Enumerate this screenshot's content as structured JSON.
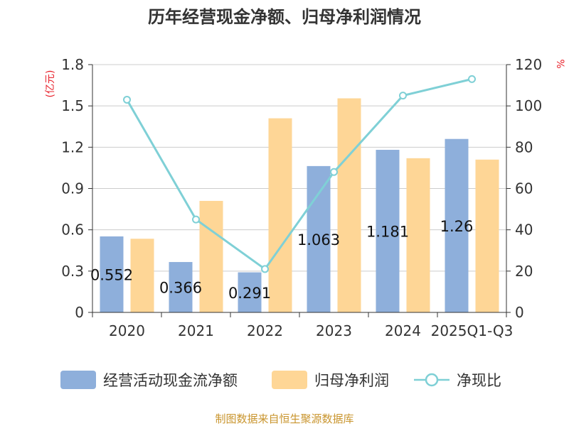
{
  "chart_data": {
    "type": "bar+line",
    "title": "历年经营现金净额、归母净利润情况",
    "categories": [
      "2020",
      "2021",
      "2022",
      "2023",
      "2024",
      "2025Q1-Q3"
    ],
    "series": [
      {
        "name": "经营活动现金流净额",
        "type": "bar",
        "axis": "left",
        "values": [
          0.552,
          0.366,
          0.291,
          1.063,
          1.181,
          1.26
        ],
        "data_labels": [
          "0.552",
          "0.366",
          "0.291",
          "1.063",
          "1.181",
          "1.26"
        ]
      },
      {
        "name": "归母净利润",
        "type": "bar",
        "axis": "left",
        "values": [
          0.535,
          0.81,
          1.41,
          1.555,
          1.12,
          1.11
        ]
      },
      {
        "name": "净现比",
        "type": "line",
        "axis": "right",
        "values": [
          103,
          45,
          21,
          68,
          105,
          113
        ]
      }
    ],
    "left_axis": {
      "unit": "(亿元)",
      "ticks": [
        "0",
        "0.3",
        "0.6",
        "0.9",
        "1.2",
        "1.5",
        "1.8"
      ],
      "ylim": [
        0,
        1.8
      ]
    },
    "right_axis": {
      "unit": "%",
      "ticks": [
        "0",
        "20",
        "40",
        "60",
        "80",
        "100",
        "120"
      ],
      "ylim": [
        0,
        120
      ]
    },
    "grid": true,
    "legend_position": "bottom"
  },
  "colors": {
    "bar1": "#8eafdb",
    "bar2": "#fed696",
    "line": "#7fd0d6",
    "axis": "#333333",
    "grid": "#cccccc"
  },
  "source": "制图数据来自恒生聚源数据库"
}
